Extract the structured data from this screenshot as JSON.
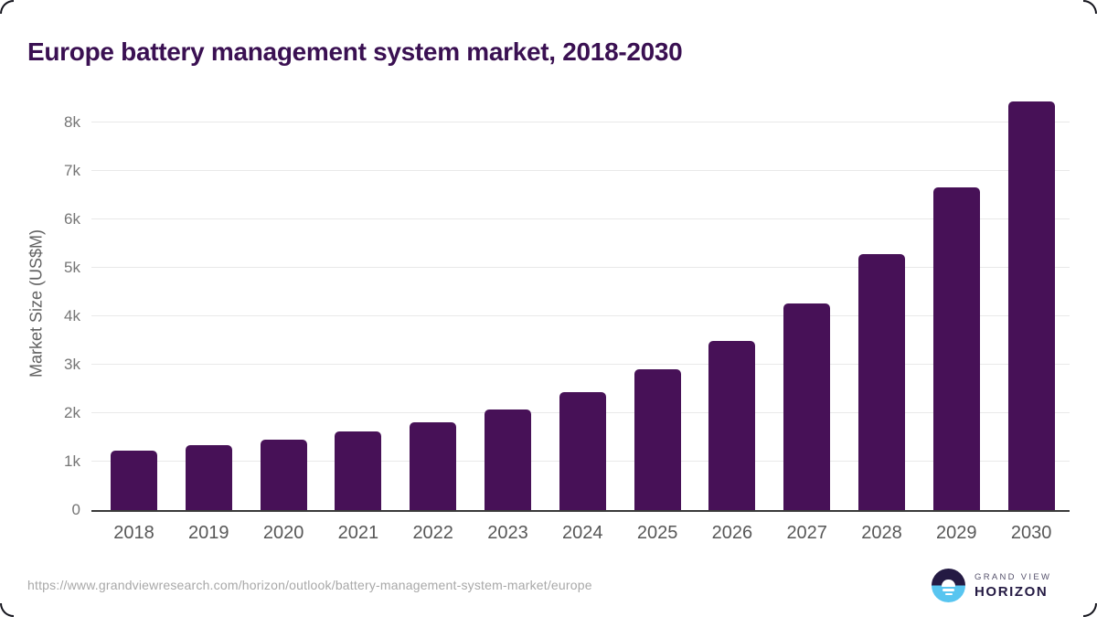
{
  "title": "Europe battery management system market, 2018-2030",
  "footer": {
    "source_url": "https://www.grandviewresearch.com/horizon/outlook/battery-management-system-market/europe"
  },
  "logo": {
    "top_text": "GRAND VIEW",
    "bottom_text": "HORIZON",
    "icon": "horizon-sun-icon"
  },
  "colors": {
    "bar": "#471157",
    "title": "#3a1052",
    "gridline": "#e9e9e9",
    "axis_line": "#3a3a3a",
    "y_tick_label": "#757575",
    "x_tick_label": "#575757",
    "footer_text": "#a8a8a8",
    "logo_dark": "#241a43",
    "logo_blue": "#58c5f0"
  },
  "chart_data": {
    "type": "bar",
    "title": "Europe battery management system market, 2018-2030",
    "categories": [
      "2018",
      "2019",
      "2020",
      "2021",
      "2022",
      "2023",
      "2024",
      "2025",
      "2026",
      "2027",
      "2028",
      "2029",
      "2030"
    ],
    "values": [
      1235,
      1345,
      1450,
      1615,
      1820,
      2080,
      2435,
      2905,
      3485,
      4260,
      5290,
      6660,
      8435
    ],
    "xlabel": "",
    "ylabel": "Market Size (US$M)",
    "ylim": [
      0,
      8000
    ],
    "yticks": {
      "values": [
        0,
        1000,
        2000,
        3000,
        4000,
        5000,
        6000,
        7000,
        8000
      ],
      "labels": [
        "0",
        "1k",
        "2k",
        "3k",
        "4k",
        "5k",
        "6k",
        "7k",
        "8k"
      ]
    },
    "grid": "horizontal",
    "legend": "none",
    "bar_color": "#471157",
    "units": "US$M"
  }
}
